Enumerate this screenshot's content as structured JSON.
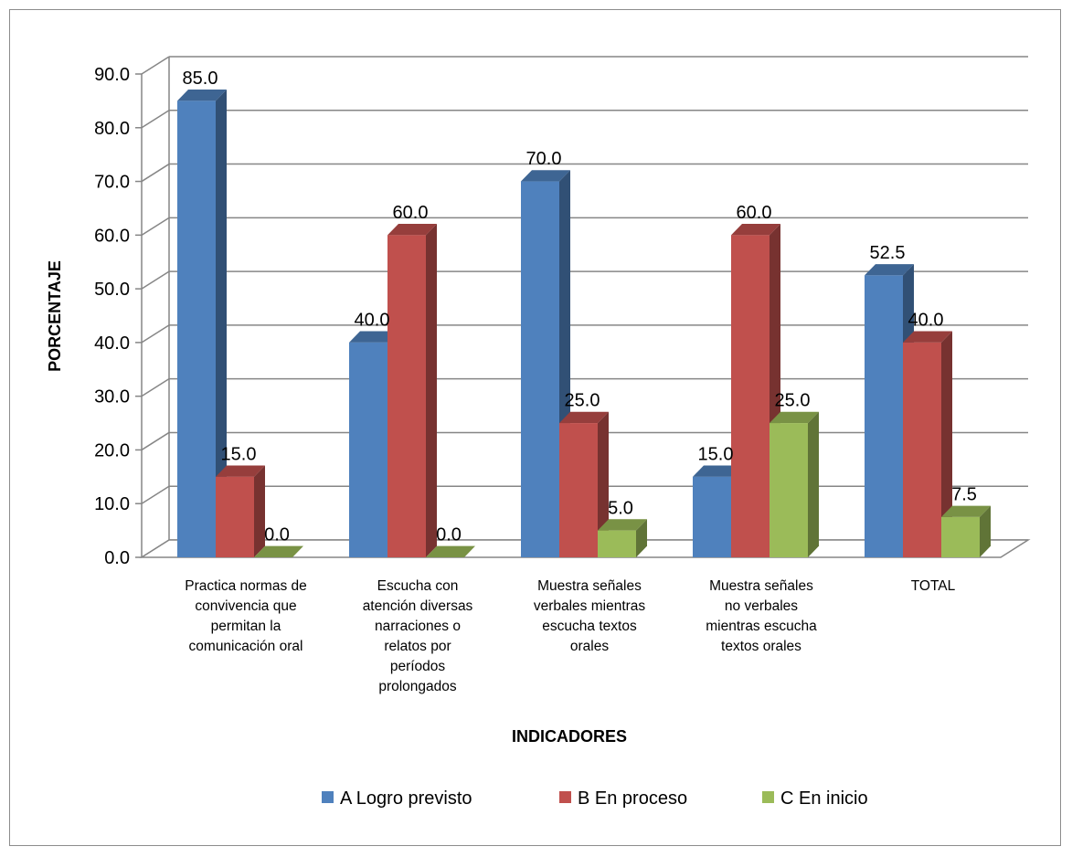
{
  "chart_data": {
    "type": "bar",
    "subtype": "3d-clustered-column",
    "categories": [
      "Practica normas de convivencia que permitan la comunicación oral",
      "Escucha con atención diversas narraciones o relatos por períodos prolongados",
      "Muestra señales verbales mientras escucha textos orales",
      "Muestra señales no verbales mientras escucha textos orales",
      "TOTAL"
    ],
    "category_lines": [
      [
        "Practica normas de",
        "convivencia que",
        "permitan la",
        "comunicación oral"
      ],
      [
        "Escucha con",
        "atención diversas",
        "narraciones o",
        "relatos por",
        "períodos",
        "prolongados"
      ],
      [
        "Muestra señales",
        "verbales mientras",
        "escucha textos",
        "orales"
      ],
      [
        "Muestra señales",
        "no verbales",
        "mientras escucha",
        "textos orales"
      ],
      [
        "TOTAL"
      ]
    ],
    "series": [
      {
        "name": "A Logro previsto",
        "values": [
          85.0,
          40.0,
          70.0,
          15.0,
          52.5
        ],
        "color": "#4F81BD"
      },
      {
        "name": "B En proceso",
        "values": [
          15.0,
          60.0,
          25.0,
          60.0,
          40.0
        ],
        "color": "#C0504D"
      },
      {
        "name": "C En inicio",
        "values": [
          0.0,
          0.0,
          5.0,
          25.0,
          7.5
        ],
        "color": "#9BBB59"
      }
    ],
    "xlabel": "INDICADORES",
    "ylabel": "PORCENTAJE",
    "ylim": [
      0,
      90
    ],
    "yticks": [
      "0.0",
      "10.0",
      "20.0",
      "30.0",
      "40.0",
      "50.0",
      "60.0",
      "70.0",
      "80.0",
      "90.0"
    ],
    "data_label_format": "0.0",
    "grid": true,
    "legend_position": "bottom"
  }
}
